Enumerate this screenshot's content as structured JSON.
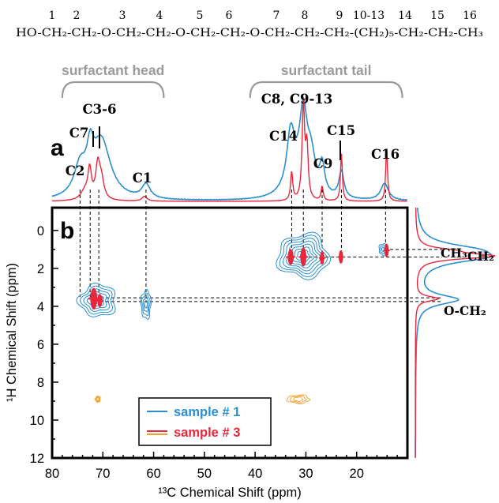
{
  "formula": {
    "line": "HO-CH₂-CH₂-O-CH₂-CH₂-O-CH₂-CH₂-O-CH₂-CH₂-CH₂-(CH₂)₅-CH₂-CH₂-CH₃",
    "numbers": [
      "1",
      "2",
      "3",
      "4",
      "5",
      "6",
      "7",
      "8",
      "9",
      "10-13",
      "14",
      "15",
      "16"
    ]
  },
  "regions": [
    {
      "label": "surfactant head",
      "from": 78,
      "to": 58
    },
    {
      "label": "surfactant tail",
      "from": 41,
      "to": 11
    }
  ],
  "panels": {
    "a": "a",
    "b": "b"
  },
  "peak_labels": [
    {
      "label": "C2",
      "x": 74.5
    },
    {
      "label": "C7",
      "x": 72.5
    },
    {
      "label": "C3-6",
      "x": 70.5
    },
    {
      "label": "C1",
      "x": 61.5
    },
    {
      "label": "C14",
      "x": 32.5
    },
    {
      "label": "C8, C9-13",
      "x": 30.0
    },
    {
      "label": "C9",
      "x": 26.5
    },
    {
      "label": "C15",
      "x": 23.0
    },
    {
      "label": "C16",
      "x": 14.0
    }
  ],
  "f1_labels": [
    {
      "label": "CH₃",
      "y": 1.0
    },
    {
      "label": "CH₂",
      "y": 1.4
    },
    {
      "label": "O‑CH₂",
      "y": 3.7
    }
  ],
  "legend": [
    {
      "label": "sample # 1",
      "color": "#2a8fd0"
    },
    {
      "label": "sample # 3",
      "color": "#e8273c"
    }
  ],
  "colors": {
    "sample1": "#2a8fd0",
    "sample3": "#e8273c",
    "orange": "#f0a030",
    "bracket": "#9a9a9a"
  },
  "chart_data": {
    "type": "2D NMR HETCOR spectrum",
    "xlabel": "¹³C Chemical Shift (ppm)",
    "ylabel": "¹H Chemical Shift (ppm)",
    "xlim": [
      80,
      10
    ],
    "ylim": [
      -1.2,
      12
    ],
    "xticks": [
      80,
      70,
      60,
      50,
      40,
      30,
      20
    ],
    "yticks": [
      0,
      2,
      4,
      6,
      8,
      10,
      12
    ],
    "spectrum_1d_13C": {
      "sample1_peaks": [
        {
          "x": 74.5,
          "h": 0.3,
          "w": 1.4
        },
        {
          "x": 72.5,
          "h": 0.35,
          "w": 0.8
        },
        {
          "x": 70.3,
          "h": 0.62,
          "w": 2.2
        },
        {
          "x": 61.5,
          "h": 0.15,
          "w": 1.0
        },
        {
          "x": 33.0,
          "h": 0.55,
          "w": 0.9
        },
        {
          "x": 30.5,
          "h": 0.75,
          "w": 0.9
        },
        {
          "x": 29.0,
          "h": 0.35,
          "w": 1.0
        },
        {
          "x": 26.8,
          "h": 0.3,
          "w": 0.6
        },
        {
          "x": 23.0,
          "h": 0.28,
          "w": 0.6
        },
        {
          "x": 14.5,
          "h": 0.18,
          "w": 0.9
        },
        {
          "x": 31.8,
          "h": 0.2,
          "w": 2.5
        }
      ],
      "sample3_peaks": [
        {
          "x": 72.6,
          "h": 0.3,
          "w": 0.4
        },
        {
          "x": 71.0,
          "h": 0.35,
          "w": 0.5
        },
        {
          "x": 70.3,
          "h": 0.2,
          "w": 0.6
        },
        {
          "x": 73.5,
          "h": 0.1,
          "w": 1.0
        },
        {
          "x": 61.8,
          "h": 0.05,
          "w": 0.6
        },
        {
          "x": 32.8,
          "h": 0.3,
          "w": 0.25
        },
        {
          "x": 30.5,
          "h": 1.0,
          "w": 0.3
        },
        {
          "x": 29.8,
          "h": 0.55,
          "w": 0.3
        },
        {
          "x": 26.8,
          "h": 0.15,
          "w": 0.25
        },
        {
          "x": 23.0,
          "h": 0.5,
          "w": 0.22
        },
        {
          "x": 14.1,
          "h": 0.55,
          "w": 0.22
        }
      ]
    },
    "projection_1H": {
      "sample1_peaks": [
        {
          "y": 1.0,
          "h": 0.55,
          "w": 0.35
        },
        {
          "y": 1.4,
          "h": 0.75,
          "w": 0.35
        },
        {
          "y": 3.65,
          "h": 0.55,
          "w": 0.3
        }
      ],
      "sample3_peaks": [
        {
          "y": 1.35,
          "h": 1.0,
          "w": 0.18
        },
        {
          "y": 1.05,
          "h": 0.3,
          "w": 0.15
        },
        {
          "y": 3.6,
          "h": 0.3,
          "w": 0.15
        }
      ]
    },
    "correlations_sample1": [
      {
        "x": 71.0,
        "y": 3.7,
        "rx": 3.6,
        "ry": 0.85,
        "levels": 6
      },
      {
        "x": 61.5,
        "y": 3.9,
        "rx": 1.0,
        "ry": 0.75,
        "levels": 4
      },
      {
        "x": 30.5,
        "y": 1.35,
        "rx": 5.0,
        "ry": 1.15,
        "levels": 8
      },
      {
        "x": 14.8,
        "y": 1.0,
        "rx": 0.8,
        "ry": 0.3,
        "levels": 3
      }
    ],
    "correlations_sample3": [
      {
        "x": 71.8,
        "y": 3.6,
        "rx": 0.6,
        "ry": 0.25
      },
      {
        "x": 70.6,
        "y": 3.7,
        "rx": 0.4,
        "ry": 0.15
      },
      {
        "x": 33.0,
        "y": 1.4,
        "rx": 0.5,
        "ry": 0.18
      },
      {
        "x": 30.5,
        "y": 1.4,
        "rx": 0.5,
        "ry": 0.22
      },
      {
        "x": 26.8,
        "y": 1.45,
        "rx": 0.35,
        "ry": 0.15
      },
      {
        "x": 23.1,
        "y": 1.4,
        "rx": 0.35,
        "ry": 0.15
      },
      {
        "x": 14.1,
        "y": 1.05,
        "rx": 0.35,
        "ry": 0.15
      }
    ],
    "correlations_orange": [
      {
        "x": 71.0,
        "y": 8.9,
        "rx": 0.5,
        "ry": 0.12
      },
      {
        "x": 31.5,
        "y": 8.9,
        "rx": 2.2,
        "ry": 0.18
      }
    ],
    "dashed_guides_vertical": [
      74.5,
      72.5,
      70.8,
      61.5,
      32.8,
      30.5,
      26.8,
      23.0,
      14.3
    ],
    "dashed_guides_horizontal": [
      1.0,
      1.4,
      3.55,
      3.75
    ]
  }
}
